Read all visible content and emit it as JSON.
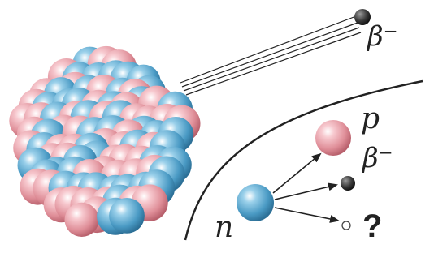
{
  "labels": {
    "beta_emitted": "β⁻",
    "proton": "p",
    "beta_decay": "β⁻",
    "unknown": "?",
    "neutron": "n"
  },
  "colors": {
    "proton": "#e8a0a8",
    "neutron": "#5aa6cc",
    "electron": "#333333",
    "line": "#222222",
    "background": "#ffffff"
  },
  "particles": {
    "nucleus": "atomic-nucleus",
    "proton": "proton-sphere",
    "neutron": "neutron-sphere",
    "electron": "electron-dot",
    "neutrino": "neutrino-circle"
  }
}
